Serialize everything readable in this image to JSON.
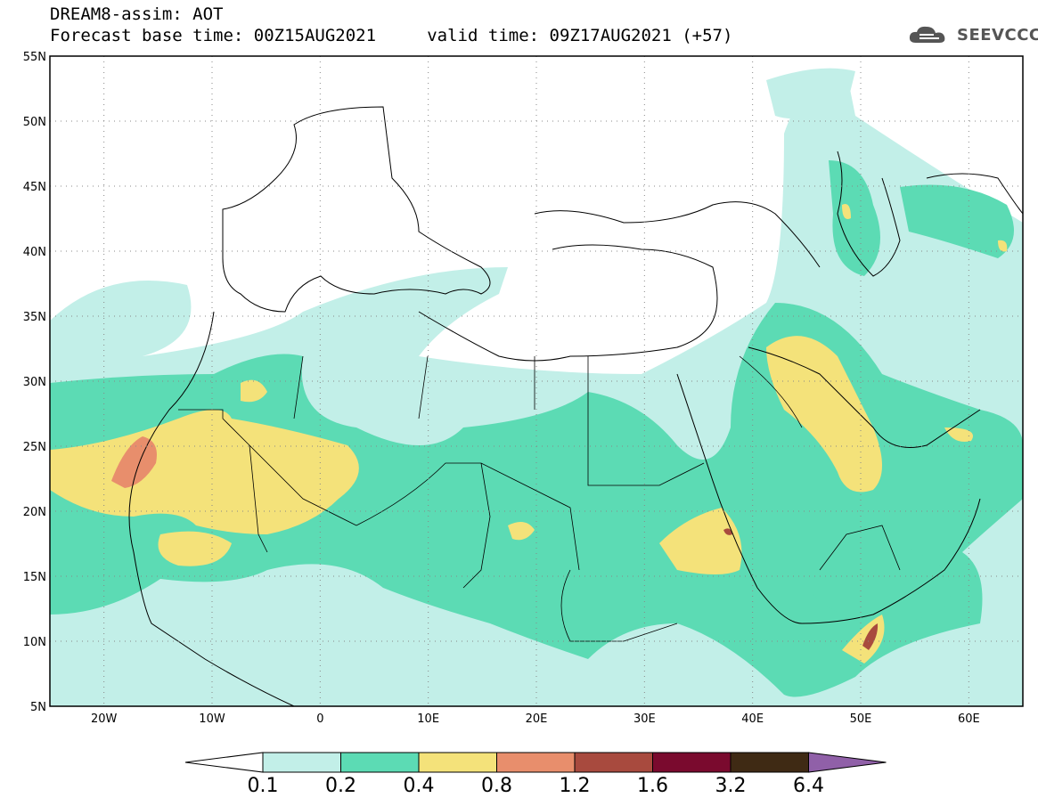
{
  "title": {
    "line1": "DREAM8-assim: AOT",
    "line2": "Forecast base time: 00Z15AUG2021     valid time: 09Z17AUG2021 (+57)"
  },
  "logo": {
    "text": "SEEVCCC",
    "icon": "cloud-logo-icon"
  },
  "map": {
    "lon_range": [
      -25,
      65
    ],
    "lat_range": [
      5,
      55
    ],
    "lat_ticks": [
      "5N",
      "10N",
      "15N",
      "20N",
      "25N",
      "30N",
      "35N",
      "40N",
      "45N",
      "50N",
      "55N"
    ],
    "lon_ticks": [
      "20W",
      "10W",
      "0",
      "10E",
      "20E",
      "30E",
      "40E",
      "50E",
      "60E"
    ],
    "gridlines": "dotted"
  },
  "colorbar": {
    "levels": [
      "0.1",
      "0.2",
      "0.4",
      "0.8",
      "1.2",
      "1.6",
      "3.2",
      "6.4"
    ],
    "colors": [
      "#ffffff",
      "#c2efe8",
      "#5cdbb4",
      "#f4e27a",
      "#e88e6c",
      "#a84a3e",
      "#7a0a2e",
      "#3f2a14",
      "#9060a8"
    ]
  }
}
